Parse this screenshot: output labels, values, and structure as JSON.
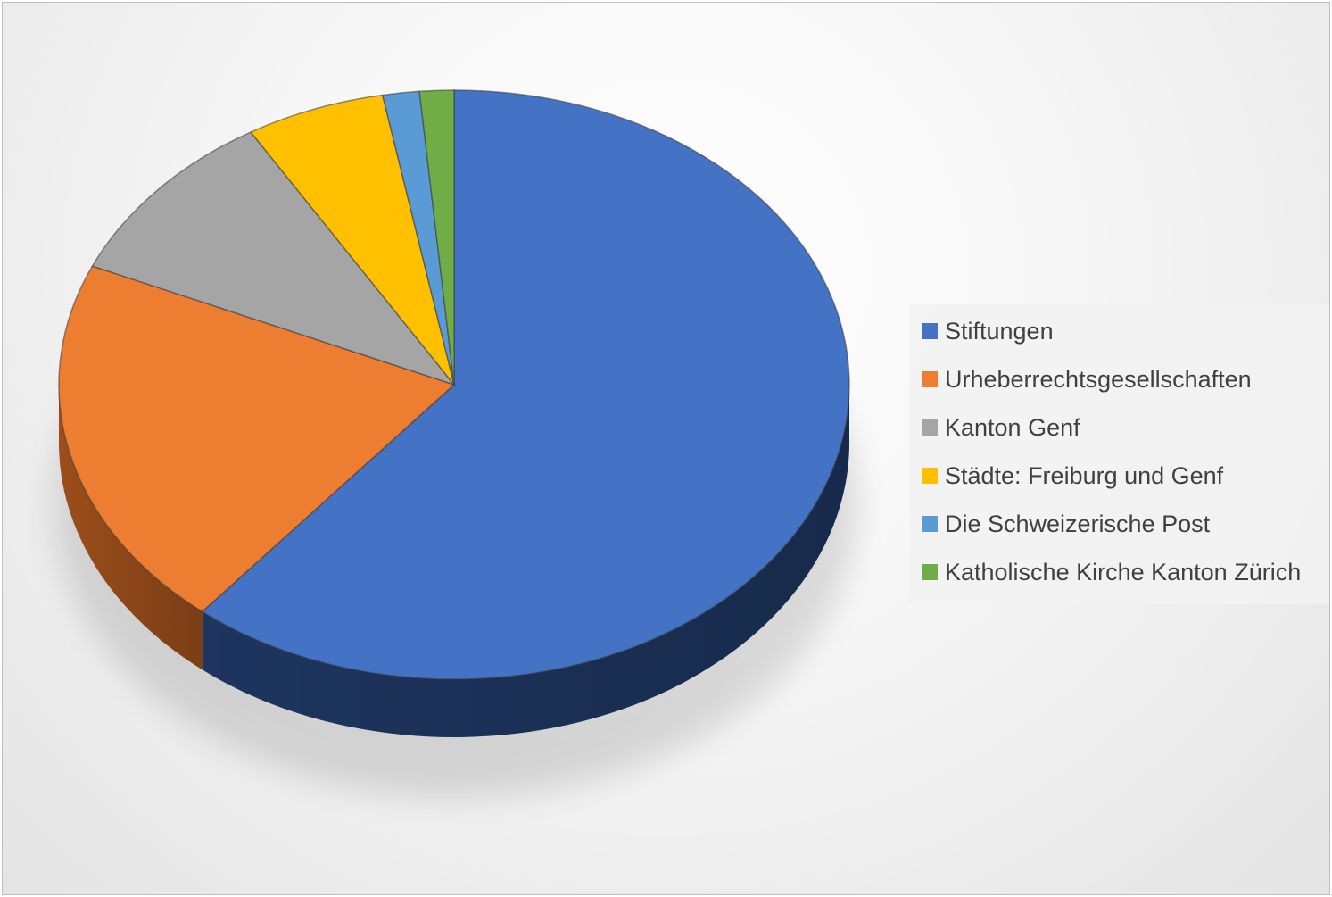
{
  "chart_data": {
    "type": "pie",
    "style": "3d",
    "title": "",
    "legend_position": "right",
    "slices": [
      {
        "label": "Stiftungen",
        "value": 61.0,
        "color": "#4472C4",
        "side_color": "#1F3864"
      },
      {
        "label": "Urheberrechtsgesellschaften",
        "value": 20.6,
        "color": "#ED7D31",
        "side_color": "#A4521C"
      },
      {
        "label": "Kanton Genf",
        "value": 9.8,
        "color": "#A5A5A5",
        "side_color": "#6E6E6E"
      },
      {
        "label": "Städte: Freiburg und Genf",
        "value": 5.7,
        "color": "#FFC000",
        "side_color": "#B38600"
      },
      {
        "label": "Die Schweizerische Post",
        "value": 1.5,
        "color": "#5B9BD5",
        "side_color": "#2E6496"
      },
      {
        "label": "Katholische Kirche Kanton Zürich",
        "value": 1.4,
        "color": "#70AD47",
        "side_color": "#44712A"
      }
    ]
  }
}
